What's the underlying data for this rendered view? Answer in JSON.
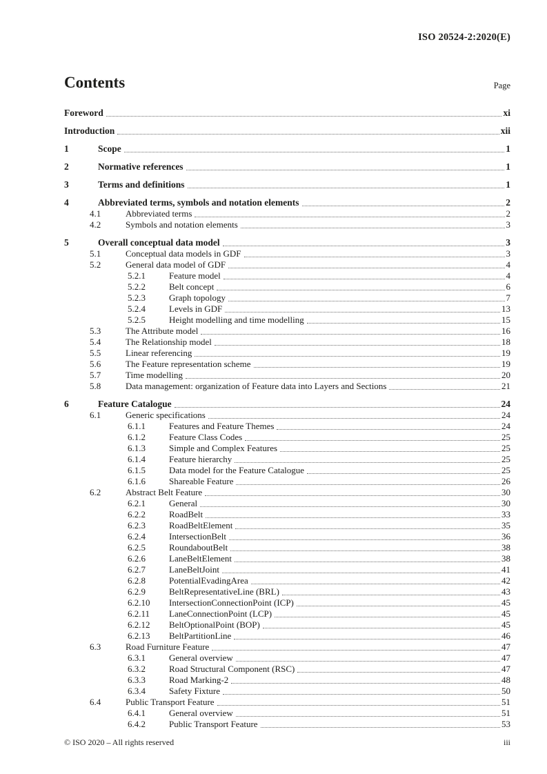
{
  "header": {
    "doc_ref": "ISO 20524-2:2020(E)"
  },
  "contents": {
    "title": "Contents",
    "page_label": "Page",
    "entries": [
      {
        "num": "",
        "title": "Foreword",
        "page": "xi",
        "level": 0,
        "bold": true
      },
      {
        "num": "",
        "title": "Introduction",
        "page": "xii",
        "level": 0,
        "bold": true
      },
      {
        "num": "1",
        "title": "Scope",
        "page": "1",
        "level": 0,
        "bold": true
      },
      {
        "num": "2",
        "title": "Normative references",
        "page": "1",
        "level": 0,
        "bold": true
      },
      {
        "num": "3",
        "title": "Terms and definitions",
        "page": "1",
        "level": 0,
        "bold": true
      },
      {
        "num": "4",
        "title": "Abbreviated terms, symbols and notation elements",
        "page": "2",
        "level": 0,
        "bold": true
      },
      {
        "num": "4.1",
        "title": "Abbreviated terms",
        "page": "2",
        "level": 1,
        "bold": false
      },
      {
        "num": "4.2",
        "title": "Symbols and notation elements",
        "page": "3",
        "level": 1,
        "bold": false
      },
      {
        "num": "5",
        "title": "Overall conceptual data model",
        "page": "3",
        "level": 0,
        "bold": true
      },
      {
        "num": "5.1",
        "title": "Conceptual data models in GDF",
        "page": "3",
        "level": 1,
        "bold": false
      },
      {
        "num": "5.2",
        "title": "General data model of GDF",
        "page": "4",
        "level": 1,
        "bold": false
      },
      {
        "num": "5.2.1",
        "title": "Feature model",
        "page": "4",
        "level": 2,
        "bold": false
      },
      {
        "num": "5.2.2",
        "title": "Belt concept",
        "page": "6",
        "level": 2,
        "bold": false
      },
      {
        "num": "5.2.3",
        "title": "Graph topology",
        "page": "7",
        "level": 2,
        "bold": false
      },
      {
        "num": "5.2.4",
        "title": "Levels in GDF",
        "page": "13",
        "level": 2,
        "bold": false
      },
      {
        "num": "5.2.5",
        "title": "Height modelling and time modelling",
        "page": "15",
        "level": 2,
        "bold": false
      },
      {
        "num": "5.3",
        "title": "The Attribute model",
        "page": "16",
        "level": 1,
        "bold": false
      },
      {
        "num": "5.4",
        "title": "The Relationship model",
        "page": "18",
        "level": 1,
        "bold": false
      },
      {
        "num": "5.5",
        "title": "Linear referencing",
        "page": "19",
        "level": 1,
        "bold": false
      },
      {
        "num": "5.6",
        "title": "The Feature representation scheme",
        "page": "19",
        "level": 1,
        "bold": false
      },
      {
        "num": "5.7",
        "title": "Time modelling",
        "page": "20",
        "level": 1,
        "bold": false
      },
      {
        "num": "5.8",
        "title": "Data management: organization of Feature data into Layers and Sections",
        "page": "21",
        "level": 1,
        "bold": false
      },
      {
        "num": "6",
        "title": "Feature Catalogue",
        "page": "24",
        "level": 0,
        "bold": true
      },
      {
        "num": "6.1",
        "title": "Generic specifications",
        "page": "24",
        "level": 1,
        "bold": false
      },
      {
        "num": "6.1.1",
        "title": "Features and Feature Themes",
        "page": "24",
        "level": 2,
        "bold": false
      },
      {
        "num": "6.1.2",
        "title": "Feature Class Codes",
        "page": "25",
        "level": 2,
        "bold": false
      },
      {
        "num": "6.1.3",
        "title": "Simple and Complex Features",
        "page": "25",
        "level": 2,
        "bold": false
      },
      {
        "num": "6.1.4",
        "title": "Feature hierarchy",
        "page": "25",
        "level": 2,
        "bold": false
      },
      {
        "num": "6.1.5",
        "title": "Data model for the Feature Catalogue",
        "page": "25",
        "level": 2,
        "bold": false
      },
      {
        "num": "6.1.6",
        "title": "Shareable Feature",
        "page": "26",
        "level": 2,
        "bold": false
      },
      {
        "num": "6.2",
        "title": "Abstract Belt Feature",
        "page": "30",
        "level": 1,
        "bold": false
      },
      {
        "num": "6.2.1",
        "title": "General",
        "page": "30",
        "level": 2,
        "bold": false
      },
      {
        "num": "6.2.2",
        "title": "RoadBelt",
        "page": "33",
        "level": 2,
        "bold": false
      },
      {
        "num": "6.2.3",
        "title": "RoadBeltElement",
        "page": "35",
        "level": 2,
        "bold": false
      },
      {
        "num": "6.2.4",
        "title": "IntersectionBelt",
        "page": "36",
        "level": 2,
        "bold": false
      },
      {
        "num": "6.2.5",
        "title": "RoundaboutBelt",
        "page": "38",
        "level": 2,
        "bold": false
      },
      {
        "num": "6.2.6",
        "title": "LaneBeltElement",
        "page": "38",
        "level": 2,
        "bold": false
      },
      {
        "num": "6.2.7",
        "title": "LaneBeltJoint",
        "page": "41",
        "level": 2,
        "bold": false
      },
      {
        "num": "6.2.8",
        "title": "PotentialEvadingArea",
        "page": "42",
        "level": 2,
        "bold": false
      },
      {
        "num": "6.2.9",
        "title": "BeltRepresentativeLine (BRL)",
        "page": "43",
        "level": 2,
        "bold": false
      },
      {
        "num": "6.2.10",
        "title": "IntersectionConnectionPoint (ICP)",
        "page": "45",
        "level": 2,
        "bold": false
      },
      {
        "num": "6.2.11",
        "title": "LaneConnectionPoint (LCP)",
        "page": "45",
        "level": 2,
        "bold": false
      },
      {
        "num": "6.2.12",
        "title": "BeltOptionalPoint (BOP)",
        "page": "45",
        "level": 2,
        "bold": false
      },
      {
        "num": "6.2.13",
        "title": "BeltPartitionLine",
        "page": "46",
        "level": 2,
        "bold": false
      },
      {
        "num": "6.3",
        "title": "Road Furniture Feature",
        "page": "47",
        "level": 1,
        "bold": false
      },
      {
        "num": "6.3.1",
        "title": "General overview",
        "page": "47",
        "level": 2,
        "bold": false
      },
      {
        "num": "6.3.2",
        "title": "Road Structural Component (RSC)",
        "page": "47",
        "level": 2,
        "bold": false
      },
      {
        "num": "6.3.3",
        "title": "Road Marking-2",
        "page": "48",
        "level": 2,
        "bold": false
      },
      {
        "num": "6.3.4",
        "title": "Safety Fixture",
        "page": "50",
        "level": 2,
        "bold": false
      },
      {
        "num": "6.4",
        "title": "Public Transport Feature",
        "page": "51",
        "level": 1,
        "bold": false
      },
      {
        "num": "6.4.1",
        "title": "General overview",
        "page": "51",
        "level": 2,
        "bold": false
      },
      {
        "num": "6.4.2",
        "title": "Public Transport Feature",
        "page": "53",
        "level": 2,
        "bold": false
      }
    ]
  },
  "footer": {
    "copyright": "© ISO 2020 – All rights reserved",
    "page_number": "iii"
  }
}
